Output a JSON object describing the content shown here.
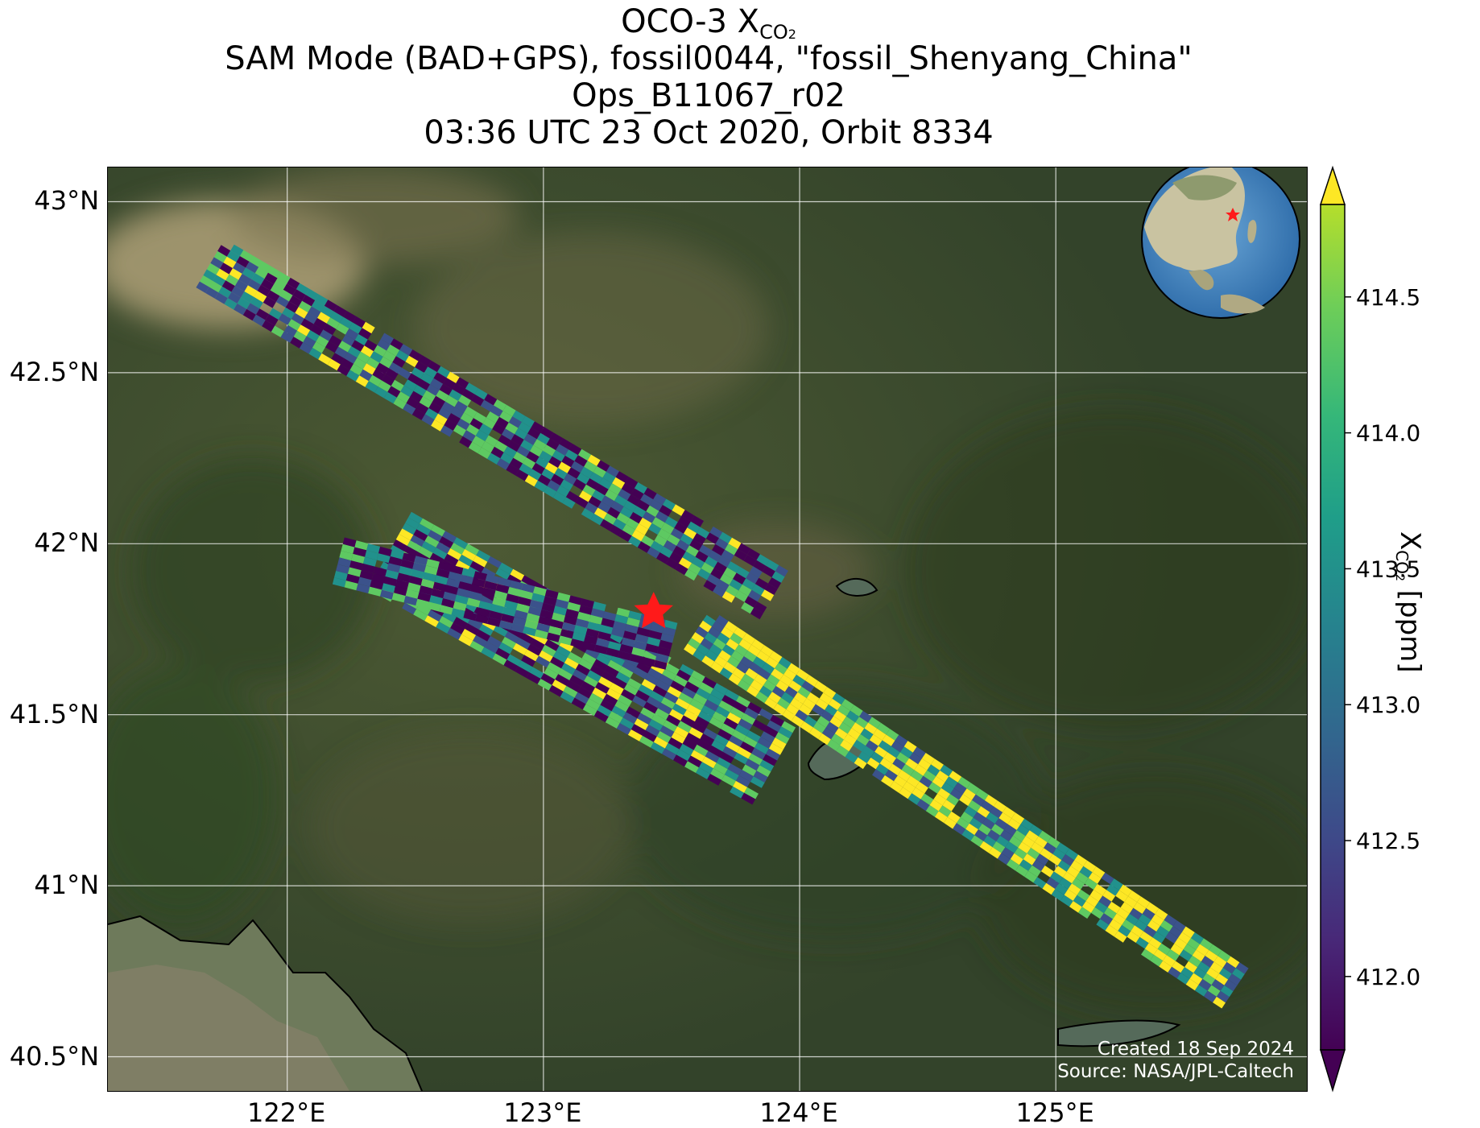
{
  "title": {
    "line1_main": "OCO-3 X",
    "line1_sub": "CO",
    "line1_sub2": "2",
    "line2": "SAM Mode (BAD+GPS), fossil0044, \"fossil_Shenyang_China\"",
    "line3": "Ops_B11067_r02",
    "line4": "03:36 UTC 23 Oct 2020, Orbit 8334"
  },
  "axes": {
    "lat_ticks": [
      "43°N",
      "42.5°N",
      "42°N",
      "41.5°N",
      "41°N",
      "40.5°N"
    ],
    "lon_ticks": [
      "122°E",
      "123°E",
      "124°E",
      "125°E"
    ]
  },
  "colorbar": {
    "label_main": "X",
    "label_sub": "CO",
    "label_sub2": "2",
    "label_unit": " [ppm]",
    "ticks": [
      "414.5",
      "414.0",
      "413.5",
      "413.0",
      "412.5",
      "412.0"
    ],
    "colormap": "viridis",
    "colors": [
      "#440154",
      "#3b528b",
      "#21918c",
      "#5ec962",
      "#fde725"
    ]
  },
  "credit": {
    "line1": "Created 18 Sep 2024",
    "line2": "Source: NASA/JPL-Caltech"
  },
  "map": {
    "target_marker": "red-star",
    "target_lon": 123.43,
    "target_lat": 41.8,
    "extent": {
      "lon": [
        121.3,
        125.98
      ],
      "lat": [
        40.4,
        43.1
      ]
    }
  }
}
